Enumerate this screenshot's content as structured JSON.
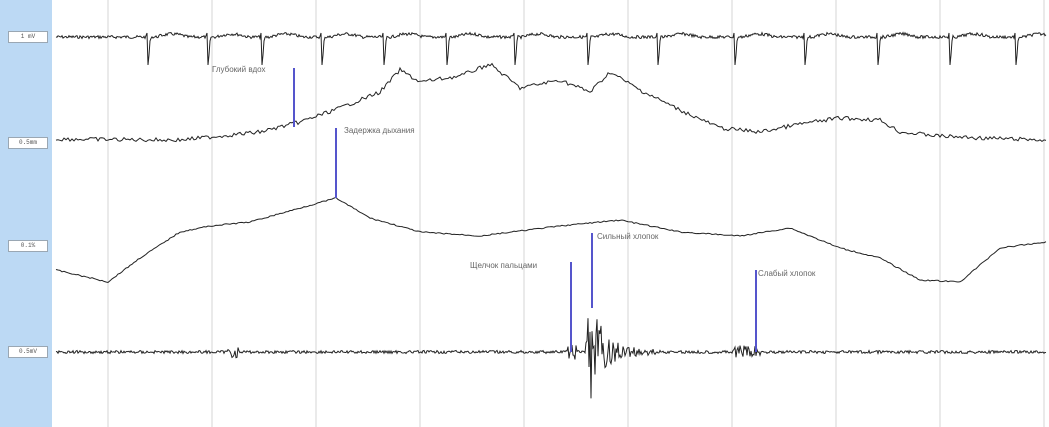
{
  "chart_data": {
    "type": "line",
    "title": "",
    "grid": true,
    "channels": [
      {
        "label": "1 mV",
        "kind": "ecg"
      },
      {
        "label": "0.5mm",
        "kind": "resp"
      },
      {
        "label": "0.1%",
        "kind": "smooth"
      },
      {
        "label": "0.5mV",
        "kind": "emg"
      }
    ],
    "markers": [
      {
        "channel": 1,
        "x": 294,
        "text": "Глубокий вдох"
      },
      {
        "channel": 1,
        "x": 336,
        "text": "Задержка дыхания"
      },
      {
        "channel": 3,
        "x": 571,
        "text": "Щелчок пальцами"
      },
      {
        "channel": 3,
        "x": 592,
        "text": "Сильный хлопок"
      },
      {
        "channel": 3,
        "x": 756,
        "text": "Слабый хлопок"
      }
    ]
  },
  "colors": {
    "sidebar": "#bcd9f4",
    "trace": "#222222",
    "grid": "#d4d4d4",
    "marker": "#5555cc"
  }
}
